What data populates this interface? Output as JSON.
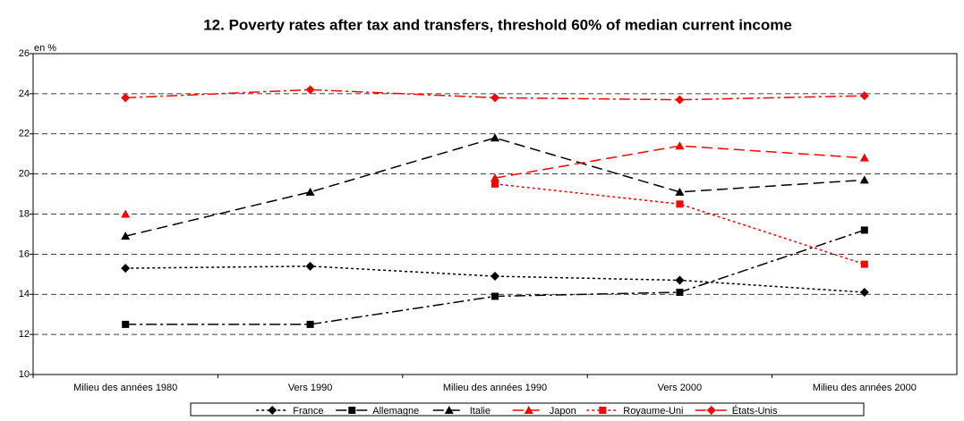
{
  "chart_data": {
    "type": "line",
    "title": "12. Poverty rates after tax and transfers, threshold 60% of median current income",
    "y_label": "en %",
    "categories": [
      "Milieu des années 1980",
      "Vers 1990",
      "Milieu des années 1990",
      "Vers 2000",
      "Milieu des années 2000"
    ],
    "series": [
      {
        "name": "France",
        "color": "#000000",
        "line_style": "dotted",
        "marker": "diamond",
        "values": [
          15.3,
          15.4,
          14.9,
          14.7,
          14.1
        ]
      },
      {
        "name": "Allemagne",
        "color": "#000000",
        "line_style": "dashdot",
        "marker": "square",
        "values": [
          12.5,
          12.5,
          13.9,
          14.1,
          17.2
        ]
      },
      {
        "name": "Italie",
        "color": "#000000",
        "line_style": "dashed",
        "marker": "triangle",
        "values": [
          16.9,
          19.1,
          21.8,
          19.1,
          19.7
        ]
      },
      {
        "name": "Japon",
        "color": "#ff0000",
        "line_style": "dashed",
        "marker": "triangle",
        "values": [
          18.0,
          null,
          19.8,
          21.4,
          20.8
        ]
      },
      {
        "name": "Royaume-Uni",
        "color": "#ff0000",
        "line_style": "dotted",
        "marker": "square",
        "values": [
          null,
          null,
          19.5,
          18.5,
          15.5
        ]
      },
      {
        "name": "États-Unis",
        "color": "#ff0000",
        "line_style": "dashdot",
        "marker": "diamond",
        "values": [
          23.8,
          24.2,
          23.8,
          23.7,
          23.9
        ]
      }
    ],
    "ylim": [
      10,
      26
    ],
    "yticks": [
      10,
      12,
      14,
      16,
      18,
      20,
      22,
      24,
      26
    ],
    "grid": true,
    "legend": "bottom"
  }
}
